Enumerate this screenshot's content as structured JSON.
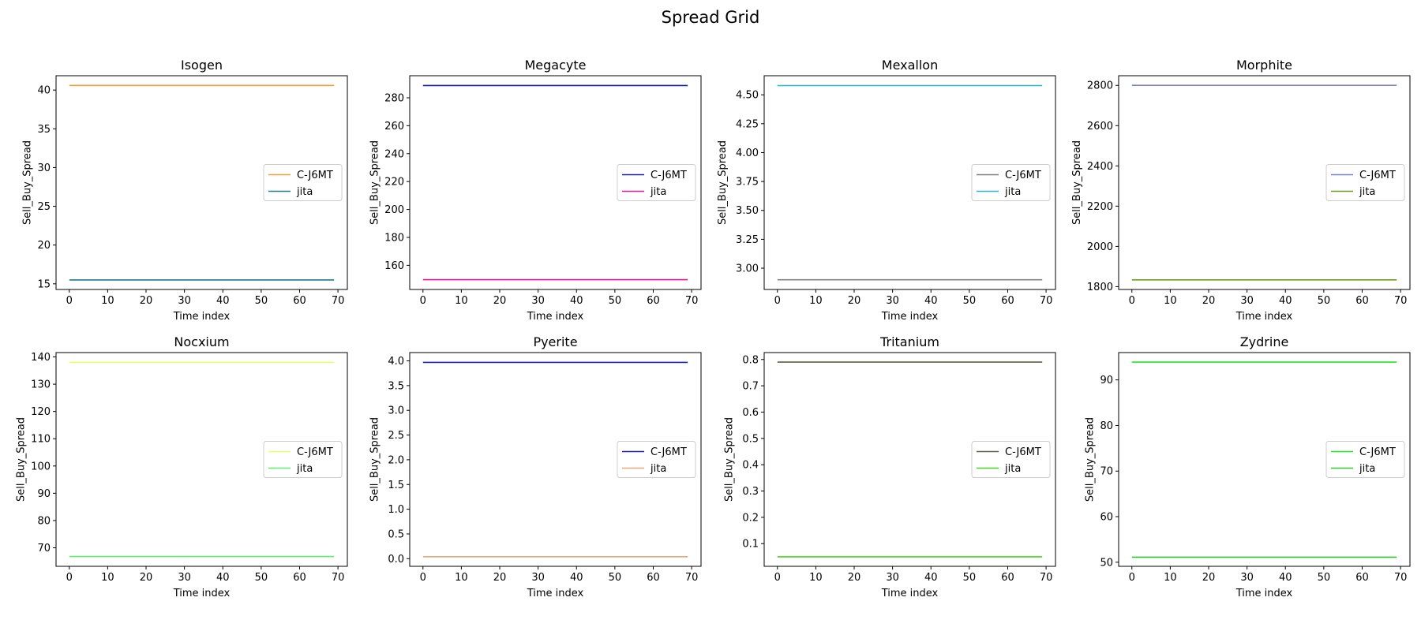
{
  "figure": {
    "title": "Spread Grid"
  },
  "chart_data": [
    {
      "type": "line",
      "title": "Isogen",
      "xlabel": "Time index",
      "ylabel": "Sell_Buy_Spread",
      "xlim": [
        -3.45,
        72.45
      ],
      "ylim": [
        14.27,
        41.85
      ],
      "xticks": [
        0,
        10,
        20,
        30,
        40,
        50,
        60,
        70
      ],
      "yticks": [
        15,
        20,
        25,
        30,
        35,
        40
      ],
      "yticks_labels": [
        "15",
        "20",
        "25",
        "30",
        "35",
        "40"
      ],
      "legend": "center right",
      "series": [
        {
          "name": "C-J6MT",
          "color": "#f59c3c",
          "x": [
            0,
            69
          ],
          "y": [
            40.6,
            40.6
          ]
        },
        {
          "name": "jita",
          "color": "#1a7f8e",
          "x": [
            0,
            69
          ],
          "y": [
            15.5,
            15.5
          ]
        }
      ]
    },
    {
      "type": "line",
      "title": "Megacyte",
      "xlabel": "Time index",
      "ylabel": "Sell_Buy_Spread",
      "xlim": [
        -3.45,
        72.45
      ],
      "ylim": [
        142.7,
        295.8
      ],
      "xticks": [
        0,
        10,
        20,
        30,
        40,
        50,
        60,
        70
      ],
      "yticks": [
        160,
        180,
        200,
        220,
        240,
        260,
        280
      ],
      "yticks_labels": [
        "160",
        "180",
        "200",
        "220",
        "240",
        "260",
        "280"
      ],
      "legend": "center right",
      "series": [
        {
          "name": "C-J6MT",
          "color": "#1c1c9c",
          "x": [
            0,
            69
          ],
          "y": [
            288.8,
            288.8
          ]
        },
        {
          "name": "jita",
          "color": "#e0179a",
          "x": [
            0,
            69
          ],
          "y": [
            149.7,
            149.7
          ]
        }
      ]
    },
    {
      "type": "line",
      "title": "Mexallon",
      "xlabel": "Time index",
      "ylabel": "Sell_Buy_Spread",
      "xlim": [
        -3.45,
        72.45
      ],
      "ylim": [
        2.816,
        4.665
      ],
      "xticks": [
        0,
        10,
        20,
        30,
        40,
        50,
        60,
        70
      ],
      "yticks": [
        3.0,
        3.25,
        3.5,
        3.75,
        4.0,
        4.25,
        4.5
      ],
      "yticks_labels": [
        "3.00",
        "3.25",
        "3.50",
        "3.75",
        "4.00",
        "4.25",
        "4.50"
      ],
      "legend": "center right",
      "series": [
        {
          "name": "C-J6MT",
          "color": "#7f7f7f",
          "x": [
            0,
            69
          ],
          "y": [
            2.9,
            2.9
          ]
        },
        {
          "name": "jita",
          "color": "#29b3d9",
          "x": [
            0,
            69
          ],
          "y": [
            4.58,
            4.58
          ]
        }
      ]
    },
    {
      "type": "line",
      "title": "Morphite",
      "xlabel": "Time index",
      "ylabel": "Sell_Buy_Spread",
      "xlim": [
        -3.45,
        72.45
      ],
      "ylim": [
        1786,
        2848
      ],
      "xticks": [
        0,
        10,
        20,
        30,
        40,
        50,
        60,
        70
      ],
      "yticks": [
        1800,
        2000,
        2200,
        2400,
        2600,
        2800
      ],
      "yticks_labels": [
        "1800",
        "2000",
        "2200",
        "2400",
        "2600",
        "2800"
      ],
      "legend": "center right",
      "series": [
        {
          "name": "C-J6MT",
          "color": "#7d7fd0",
          "x": [
            0,
            69
          ],
          "y": [
            2800,
            2800
          ]
        },
        {
          "name": "jita",
          "color": "#6b9e1a",
          "x": [
            0,
            69
          ],
          "y": [
            1834,
            1834
          ]
        }
      ]
    },
    {
      "type": "line",
      "title": "Nocxium",
      "xlabel": "Time index",
      "ylabel": "Sell_Buy_Spread",
      "xlim": [
        -3.45,
        72.45
      ],
      "ylim": [
        63.2,
        141.6
      ],
      "xticks": [
        0,
        10,
        20,
        30,
        40,
        50,
        60,
        70
      ],
      "yticks": [
        70,
        80,
        90,
        100,
        110,
        120,
        130,
        140
      ],
      "yticks_labels": [
        "70",
        "80",
        "90",
        "100",
        "110",
        "120",
        "130",
        "140"
      ],
      "legend": "center right",
      "series": [
        {
          "name": "C-J6MT",
          "color": "#e8ff6e",
          "x": [
            0,
            69
          ],
          "y": [
            138,
            138
          ]
        },
        {
          "name": "jita",
          "color": "#5cf06a",
          "x": [
            0,
            69
          ],
          "y": [
            66.8,
            66.8
          ]
        }
      ]
    },
    {
      "type": "line",
      "title": "Pyerite",
      "xlabel": "Time index",
      "ylabel": "Sell_Buy_Spread",
      "xlim": [
        -3.45,
        72.45
      ],
      "ylim": [
        -0.155,
        4.168
      ],
      "xticks": [
        0,
        10,
        20,
        30,
        40,
        50,
        60,
        70
      ],
      "yticks": [
        0,
        0.5,
        1.0,
        1.5,
        2.0,
        2.5,
        3.0,
        3.5,
        4.0
      ],
      "yticks_labels": [
        "0.0",
        "0.5",
        "1.0",
        "1.5",
        "2.0",
        "2.5",
        "3.0",
        "3.5",
        "4.0"
      ],
      "legend": "center right",
      "series": [
        {
          "name": "C-J6MT",
          "color": "#1f1fa6",
          "x": [
            0,
            69
          ],
          "y": [
            3.97,
            3.97
          ]
        },
        {
          "name": "jita",
          "color": "#e3a877",
          "x": [
            0,
            69
          ],
          "y": [
            0.04,
            0.04
          ]
        }
      ]
    },
    {
      "type": "line",
      "title": "Tritanium",
      "xlabel": "Time index",
      "ylabel": "Sell_Buy_Spread",
      "xlim": [
        -3.45,
        72.45
      ],
      "ylim": [
        0.0137,
        0.8263
      ],
      "xticks": [
        0,
        10,
        20,
        30,
        40,
        50,
        60,
        70
      ],
      "yticks": [
        0.1,
        0.2,
        0.3,
        0.4,
        0.5,
        0.6,
        0.7,
        0.8
      ],
      "yticks_labels": [
        "0.1",
        "0.2",
        "0.3",
        "0.4",
        "0.5",
        "0.6",
        "0.7",
        "0.8"
      ],
      "legend": "center right",
      "series": [
        {
          "name": "C-J6MT",
          "color": "#5e5e4c",
          "x": [
            0,
            69
          ],
          "y": [
            0.79,
            0.79
          ]
        },
        {
          "name": "jita",
          "color": "#44d61e",
          "x": [
            0,
            69
          ],
          "y": [
            0.05,
            0.05
          ]
        }
      ]
    },
    {
      "type": "line",
      "title": "Zydrine",
      "xlabel": "Time index",
      "ylabel": "Sell_Buy_Spread",
      "xlim": [
        -3.45,
        72.45
      ],
      "ylim": [
        49.1,
        96.0
      ],
      "xticks": [
        0,
        10,
        20,
        30,
        40,
        50,
        60,
        70
      ],
      "yticks": [
        50,
        60,
        70,
        80,
        90
      ],
      "yticks_labels": [
        "50",
        "60",
        "70",
        "80",
        "90"
      ],
      "legend": "center right",
      "series": [
        {
          "name": "C-J6MT",
          "color": "#22e62a",
          "x": [
            0,
            69
          ],
          "y": [
            93.9,
            93.9
          ]
        },
        {
          "name": "jita",
          "color": "#2fc92c",
          "x": [
            0,
            69
          ],
          "y": [
            51.1,
            51.1
          ]
        }
      ]
    }
  ]
}
